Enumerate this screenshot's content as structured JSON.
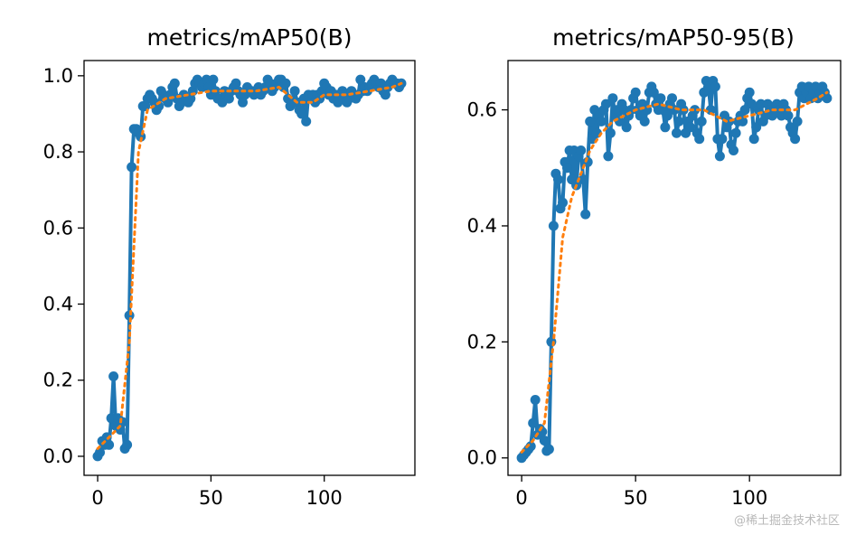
{
  "watermark": "@稀土掘金技术社区",
  "colors": {
    "series": "#1f77b4",
    "smooth": "#ff7f0e",
    "axes": "#000000",
    "background": "#ffffff"
  },
  "chart_data": [
    {
      "type": "line",
      "title": "metrics/mAP50(B)",
      "xlabel": "",
      "ylabel": "",
      "xlim": [
        -6,
        140
      ],
      "ylim": [
        -0.05,
        1.04
      ],
      "xticks": [
        0,
        50,
        100
      ],
      "yticks": [
        0.0,
        0.2,
        0.4,
        0.6,
        0.8,
        1.0
      ],
      "xtick_labels": [
        "0",
        "50",
        "100"
      ],
      "ytick_labels": [
        "0.0",
        "0.2",
        "0.4",
        "0.6",
        "0.8",
        "1.0"
      ],
      "grid": false,
      "series": [
        {
          "style": "solid-marker",
          "x": [
            0,
            1,
            2,
            3,
            4,
            5,
            6,
            7,
            8,
            9,
            10,
            11,
            12,
            13,
            14,
            15,
            16,
            17,
            18,
            19,
            20,
            21,
            22,
            23,
            24,
            25,
            26,
            27,
            28,
            29,
            30,
            31,
            32,
            33,
            34,
            35,
            36,
            37,
            38,
            39,
            40,
            41,
            42,
            43,
            44,
            45,
            46,
            47,
            48,
            49,
            50,
            51,
            52,
            53,
            54,
            55,
            56,
            57,
            58,
            59,
            60,
            61,
            62,
            63,
            64,
            65,
            66,
            67,
            68,
            69,
            70,
            71,
            72,
            73,
            74,
            75,
            76,
            77,
            78,
            79,
            80,
            81,
            82,
            83,
            84,
            85,
            86,
            87,
            88,
            89,
            90,
            91,
            92,
            93,
            94,
            95,
            96,
            97,
            98,
            99,
            100,
            101,
            102,
            103,
            104,
            105,
            106,
            107,
            108,
            109,
            110,
            111,
            112,
            113,
            114,
            115,
            116,
            117,
            118,
            119,
            120,
            121,
            122,
            123,
            124,
            125,
            126,
            127,
            128,
            129,
            130,
            131,
            132,
            133,
            134
          ],
          "y": [
            0.0,
            0.01,
            0.04,
            0.03,
            0.05,
            0.03,
            0.1,
            0.21,
            0.08,
            0.1,
            0.07,
            0.09,
            0.02,
            0.03,
            0.37,
            0.76,
            0.86,
            0.86,
            0.85,
            0.84,
            0.92,
            0.92,
            0.94,
            0.95,
            0.94,
            0.93,
            0.91,
            0.92,
            0.96,
            0.95,
            0.94,
            0.93,
            0.95,
            0.97,
            0.98,
            0.94,
            0.92,
            0.93,
            0.95,
            0.94,
            0.93,
            0.94,
            0.96,
            0.98,
            0.99,
            0.98,
            0.97,
            0.98,
            0.99,
            0.97,
            0.95,
            0.99,
            0.96,
            0.94,
            0.94,
            0.93,
            0.96,
            0.95,
            0.94,
            0.96,
            0.97,
            0.98,
            0.96,
            0.95,
            0.93,
            0.95,
            0.97,
            0.96,
            0.96,
            0.95,
            0.96,
            0.97,
            0.95,
            0.96,
            0.97,
            0.99,
            0.98,
            0.96,
            0.97,
            0.98,
            0.99,
            0.99,
            0.97,
            0.98,
            0.94,
            0.92,
            0.93,
            0.96,
            0.93,
            0.91,
            0.9,
            0.94,
            0.88,
            0.95,
            0.94,
            0.95,
            0.93,
            0.95,
            0.94,
            0.96,
            0.98,
            0.97,
            0.95,
            0.96,
            0.94,
            0.95,
            0.93,
            0.94,
            0.96,
            0.95,
            0.93,
            0.94,
            0.96,
            0.95,
            0.94,
            0.95,
            0.99,
            0.96,
            0.97,
            0.96,
            0.97,
            0.98,
            0.99,
            0.98,
            0.97,
            0.98,
            0.96,
            0.95,
            0.97,
            0.98,
            0.99,
            0.98,
            0.98,
            0.97,
            0.98
          ]
        },
        {
          "style": "dotted",
          "x": [
            0,
            5,
            10,
            14,
            18,
            22,
            30,
            40,
            50,
            60,
            70,
            80,
            88,
            95,
            100,
            110,
            120,
            130,
            134
          ],
          "y": [
            0.02,
            0.05,
            0.08,
            0.3,
            0.8,
            0.91,
            0.94,
            0.95,
            0.96,
            0.96,
            0.96,
            0.97,
            0.93,
            0.93,
            0.95,
            0.95,
            0.96,
            0.97,
            0.98
          ]
        }
      ]
    },
    {
      "type": "line",
      "title": "metrics/mAP50-95(B)",
      "xlabel": "",
      "ylabel": "",
      "xlim": [
        -6,
        140
      ],
      "ylim": [
        -0.03,
        0.685
      ],
      "xticks": [
        0,
        50,
        100
      ],
      "yticks": [
        0.0,
        0.2,
        0.4,
        0.6
      ],
      "xtick_labels": [
        "0",
        "50",
        "100"
      ],
      "ytick_labels": [
        "0.0",
        "0.2",
        "0.4",
        "0.6"
      ],
      "grid": false,
      "series": [
        {
          "style": "solid-marker",
          "x": [
            0,
            1,
            2,
            3,
            4,
            5,
            6,
            7,
            8,
            9,
            10,
            11,
            12,
            13,
            14,
            15,
            16,
            17,
            18,
            19,
            20,
            21,
            22,
            23,
            24,
            25,
            26,
            27,
            28,
            29,
            30,
            31,
            32,
            33,
            34,
            35,
            36,
            37,
            38,
            39,
            40,
            41,
            42,
            43,
            44,
            45,
            46,
            47,
            48,
            49,
            50,
            51,
            52,
            53,
            54,
            55,
            56,
            57,
            58,
            59,
            60,
            61,
            62,
            63,
            64,
            65,
            66,
            67,
            68,
            69,
            70,
            71,
            72,
            73,
            74,
            75,
            76,
            77,
            78,
            79,
            80,
            81,
            82,
            83,
            84,
            85,
            86,
            87,
            88,
            89,
            90,
            91,
            92,
            93,
            94,
            95,
            96,
            97,
            98,
            99,
            100,
            101,
            102,
            103,
            104,
            105,
            106,
            107,
            108,
            109,
            110,
            111,
            112,
            113,
            114,
            115,
            116,
            117,
            118,
            119,
            120,
            121,
            122,
            123,
            124,
            125,
            126,
            127,
            128,
            129,
            130,
            131,
            132,
            133,
            134
          ],
          "y": [
            0.0,
            0.005,
            0.01,
            0.015,
            0.02,
            0.06,
            0.1,
            0.04,
            0.05,
            0.045,
            0.03,
            0.012,
            0.015,
            0.2,
            0.4,
            0.49,
            0.48,
            0.43,
            0.44,
            0.51,
            0.5,
            0.53,
            0.48,
            0.53,
            0.47,
            0.52,
            0.53,
            0.48,
            0.42,
            0.51,
            0.58,
            0.55,
            0.6,
            0.56,
            0.59,
            0.58,
            0.6,
            0.61,
            0.52,
            0.56,
            0.62,
            0.59,
            0.6,
            0.58,
            0.61,
            0.6,
            0.57,
            0.59,
            0.6,
            0.62,
            0.63,
            0.6,
            0.59,
            0.61,
            0.58,
            0.6,
            0.63,
            0.64,
            0.63,
            0.61,
            0.6,
            0.62,
            0.6,
            0.57,
            0.59,
            0.61,
            0.62,
            0.6,
            0.56,
            0.58,
            0.61,
            0.6,
            0.56,
            0.58,
            0.57,
            0.59,
            0.6,
            0.56,
            0.55,
            0.58,
            0.63,
            0.65,
            0.64,
            0.6,
            0.65,
            0.64,
            0.55,
            0.52,
            0.55,
            0.59,
            0.57,
            0.58,
            0.54,
            0.53,
            0.56,
            0.58,
            0.59,
            0.58,
            0.6,
            0.62,
            0.63,
            0.61,
            0.55,
            0.57,
            0.6,
            0.61,
            0.58,
            0.59,
            0.61,
            0.6,
            0.59,
            0.6,
            0.61,
            0.6,
            0.59,
            0.61,
            0.6,
            0.59,
            0.57,
            0.56,
            0.55,
            0.58,
            0.63,
            0.64,
            0.62,
            0.63,
            0.64,
            0.62,
            0.63,
            0.64,
            0.62,
            0.63,
            0.64,
            0.63,
            0.62
          ]
        },
        {
          "style": "dotted",
          "x": [
            0,
            5,
            10,
            14,
            18,
            22,
            26,
            30,
            35,
            40,
            50,
            60,
            70,
            80,
            85,
            90,
            100,
            110,
            120,
            130,
            134
          ],
          "y": [
            0.01,
            0.03,
            0.06,
            0.2,
            0.38,
            0.45,
            0.49,
            0.53,
            0.56,
            0.58,
            0.6,
            0.61,
            0.6,
            0.6,
            0.59,
            0.58,
            0.59,
            0.6,
            0.6,
            0.62,
            0.63
          ]
        }
      ]
    }
  ]
}
